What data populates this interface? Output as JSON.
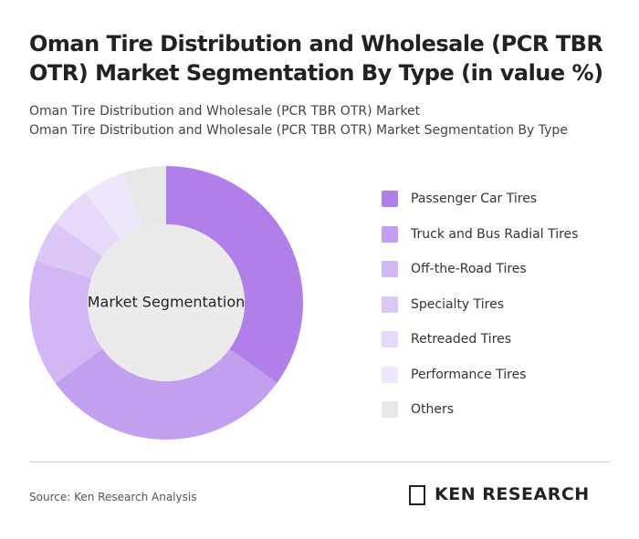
{
  "chart_data": {
    "type": "donut",
    "title": "Oman Tire Distribution and Wholesale (PCR TBR OTR) Market Segmentation By Type (in value %)",
    "subtitles": [
      "Oman Tire Distribution and Wholesale (PCR TBR OTR) Market",
      "Oman Tire Distribution and Wholesale (PCR TBR OTR) Market Segmentation By Type"
    ],
    "center_label": "Market Segmentation",
    "categories": [
      "Passenger Car Tires",
      "Truck and Bus Radial Tires",
      "Off-the-Road Tires",
      "Specialty Tires",
      "Retreaded Tires",
      "Performance Tires",
      "Others"
    ],
    "values": [
      35,
      30,
      15,
      5,
      5,
      5,
      5
    ],
    "colors": [
      "#b07fea",
      "#c39ff0",
      "#d3b7f5",
      "#dcc8f7",
      "#e6d9fa",
      "#efe7fc",
      "#e8e8e8"
    ]
  },
  "footer": {
    "source": "Source: Ken Research Analysis",
    "brand": "KEN RESEARCH"
  }
}
